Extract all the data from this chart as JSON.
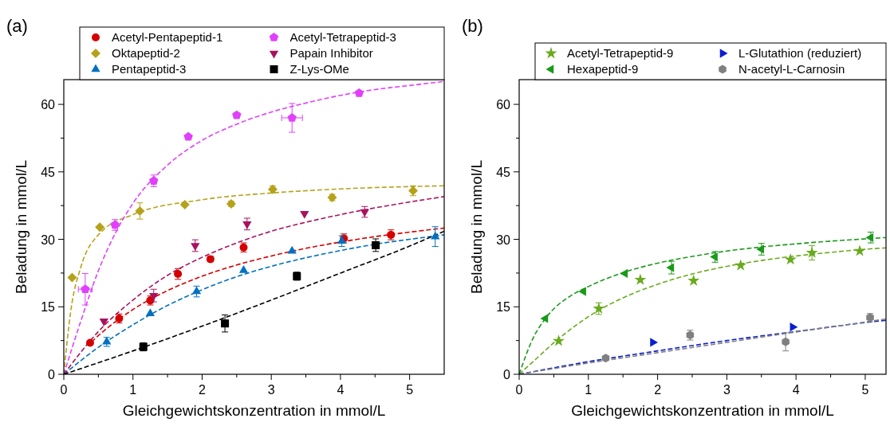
{
  "chart_data": [
    {
      "type": "scatter",
      "title": "(a)",
      "xlabel": "Gleichgewichtskonzentration in mmol/L",
      "ylabel": "Beladung in mmol/L",
      "xlim": [
        0,
        5.5
      ],
      "xticks": [
        0,
        {
          "value": 0.5,
          "label": null
        },
        1,
        {
          "value": 1.5,
          "label": null
        },
        2,
        {
          "value": 2.5,
          "label": null
        },
        3,
        {
          "value": 3.5,
          "label": null
        },
        4,
        {
          "value": 4.5,
          "label": null
        },
        5
      ],
      "ylim": [
        0,
        65.5
      ],
      "yticks": [
        0,
        {
          "value": 7.5,
          "label": null
        },
        15,
        {
          "value": 22.5,
          "label": null
        },
        30,
        {
          "value": 37.5,
          "label": null
        },
        45,
        {
          "value": 52.5,
          "label": null
        },
        60
      ],
      "legend": "top",
      "grid": false,
      "line_style": "dashed",
      "series": [
        {
          "type": "line",
          "color": "#d40000",
          "x": [
            0.4,
            0.5,
            1,
            1.5,
            2,
            2.5,
            3,
            3.5,
            4,
            4.5,
            5,
            5.5
          ],
          "values": [
            7.2,
            8.6,
            14.4,
            18.6,
            21.8,
            24.3,
            26.3,
            28.0,
            29.4,
            30.6,
            31.6,
            32.5
          ]
        },
        {
          "type": "line",
          "color": "#b5a21a",
          "x": [
            0,
            0.1,
            0.25,
            0.5,
            1,
            2,
            3,
            4,
            5.5
          ],
          "values": [
            0,
            14,
            24,
            31,
            35.5,
            38.8,
            40.3,
            41.2,
            41.9
          ]
        },
        {
          "type": "line",
          "color": "#0070c0",
          "x": [
            0,
            0.5,
            1,
            1.5,
            2,
            2.5,
            3,
            3.5,
            4,
            4.5,
            5,
            5.5
          ],
          "values": [
            0,
            6,
            11,
            15.3,
            18.8,
            21.7,
            24,
            25.9,
            27.5,
            28.9,
            30,
            31
          ]
        },
        {
          "type": "line",
          "color": "#e040fb",
          "x": [
            0,
            0.25,
            0.5,
            0.75,
            1,
            1.5,
            2,
            2.5,
            3,
            3.5,
            4,
            4.5,
            5,
            5.5
          ],
          "values": [
            0,
            12,
            23,
            31.5,
            38,
            46.5,
            52,
            55.6,
            58.3,
            60.3,
            62,
            63.3,
            64.2,
            65.1
          ]
        },
        {
          "type": "line",
          "color": "#a8125f",
          "x": [
            0,
            0.5,
            1,
            1.5,
            2,
            2.5,
            3,
            3.5,
            4,
            4.5,
            5,
            5.5
          ],
          "values": [
            0,
            9.5,
            16.5,
            22,
            26,
            29.2,
            31.8,
            33.8,
            35.5,
            37,
            38.3,
            39.5
          ]
        },
        {
          "type": "line",
          "color": "#000000",
          "x": [
            0,
            1,
            2,
            3,
            4,
            5,
            5.5
          ],
          "values": [
            0,
            5.2,
            10.7,
            16.5,
            22.5,
            28.5,
            31.8
          ]
        },
        {
          "name": "Acetyl-Pentapeptid-1",
          "color": "#d40000",
          "marker": "circle",
          "x": [
            0.38,
            0.8,
            1.25,
            1.65,
            2.12,
            2.6,
            4.05,
            4.73
          ],
          "values": [
            7,
            12.4,
            16.4,
            22.3,
            25.6,
            28.2,
            30.2,
            31
          ],
          "errors": [
            null,
            1,
            1,
            1.2,
            0.6,
            1,
            1,
            1.1
          ]
        },
        {
          "name": "Oktapeptid-2",
          "color": "#b5a21a",
          "marker": "diamond",
          "x": [
            0.12,
            0.52,
            1.1,
            1.75,
            2.42,
            3.02,
            3.88,
            5.05
          ],
          "values": [
            21.5,
            32.7,
            36.3,
            37.7,
            37.9,
            41.1,
            39.3,
            40.8
          ],
          "errors": [
            null,
            null,
            1.8,
            null,
            0.6,
            0.8,
            0.7,
            1.1
          ]
        },
        {
          "name": "Pentapeptid-3",
          "color": "#0070c0",
          "marker": "triangle",
          "x": [
            0.62,
            1.25,
            1.92,
            2.6,
            3.3,
            4.02,
            5.37
          ],
          "values": [
            7.2,
            13.5,
            18.4,
            23.1,
            27.4,
            29.6,
            30.6
          ],
          "errors": [
            1,
            null,
            1.2,
            null,
            null,
            1.2,
            2.2
          ]
        },
        {
          "name": "Acetyl-Tetrapeptid-3",
          "color": "#e040fb",
          "x": [
            0.31,
            0.74,
            1.3,
            1.8,
            2.5,
            3.3,
            4.27
          ],
          "values": [
            18.9,
            33.2,
            43,
            52.8,
            57.6,
            57,
            62.5
          ],
          "errors": [
            3.5,
            1.2,
            1.3,
            0.4,
            0.5,
            3.2,
            null
          ],
          "xerrors": [
            0.1,
            null,
            null,
            null,
            null,
            0.15,
            null
          ]
        },
        {
          "name": "Papain Inhibitor",
          "color": "#a8125f",
          "x": [
            0.58,
            1.3,
            1.9,
            2.65,
            3.48,
            4.35
          ],
          "values": [
            11.8,
            17.5,
            28.6,
            33.4,
            35.7,
            36.1
          ],
          "errors": [
            null,
            1.4,
            1.3,
            1.3,
            null,
            1.2
          ]
        },
        {
          "name": "Z-Lys-OMe",
          "color": "#000000",
          "marker": "square",
          "x": [
            1.15,
            2.33,
            3.37,
            4.51
          ],
          "values": [
            6.1,
            11.3,
            21.8,
            28.7
          ],
          "errors": [
            0.9,
            1.9,
            0.9,
            1.4
          ]
        }
      ]
    },
    {
      "type": "scatter",
      "title": "(b)",
      "xlabel": "Gleichgewichtskonzentration in mmol/L",
      "ylabel": "Beladung in mmol/L",
      "xlim": [
        0,
        5.3
      ],
      "xticks": [
        0,
        {
          "value": 0.5,
          "label": null
        },
        1,
        {
          "value": 1.5,
          "label": null
        },
        2,
        {
          "value": 2.5,
          "label": null
        },
        3,
        {
          "value": 3.5,
          "label": null
        },
        4,
        {
          "value": 4.5,
          "label": null
        },
        5
      ],
      "ylim": [
        0,
        65.5
      ],
      "yticks": [
        0,
        {
          "value": 7.5,
          "label": null
        },
        15,
        {
          "value": 22.5,
          "label": null
        },
        30,
        {
          "value": 37.5,
          "label": null
        },
        45,
        {
          "value": 52.5,
          "label": null
        },
        60
      ],
      "legend": "top",
      "grid": false,
      "line_style": "dashed",
      "series": [
        {
          "type": "line",
          "color": "#6aaa1e",
          "x": [
            0,
            0.25,
            0.5,
            1,
            1.5,
            2,
            2.5,
            3,
            3.5,
            4,
            4.5,
            5,
            5.3
          ],
          "values": [
            0,
            3.5,
            7,
            12.8,
            17,
            20,
            22.3,
            24,
            25.3,
            26.3,
            27.1,
            27.8,
            28.1
          ]
        },
        {
          "type": "line",
          "color": "#1a9a1a",
          "x": [
            0,
            0.2,
            0.4,
            0.75,
            1,
            1.5,
            2,
            2.5,
            3,
            3.5,
            4,
            4.5,
            5,
            5.3
          ],
          "values": [
            0,
            8,
            12.8,
            17.5,
            19.5,
            22.6,
            24.7,
            26.2,
            27.4,
            28.3,
            29,
            29.6,
            30.1,
            30.4
          ]
        },
        {
          "type": "line",
          "color": "#0a1ed0",
          "x": [
            0,
            1,
            2,
            3,
            4,
            5,
            5.3
          ],
          "values": [
            0,
            2.8,
            5.2,
            7.5,
            9.5,
            11.5,
            12
          ]
        },
        {
          "type": "line",
          "color": "#808080",
          "x": [
            0,
            1,
            2,
            3,
            4,
            5,
            5.3
          ],
          "values": [
            0,
            2.5,
            4.8,
            7.1,
            9.4,
            11.6,
            12.3
          ]
        },
        {
          "name": "Acetyl-Tetrapeptid-9",
          "color": "#6aaa1e",
          "marker": "star",
          "x": [
            0.57,
            1.15,
            1.75,
            2.52,
            3.2,
            3.92,
            4.23,
            4.92
          ],
          "values": [
            7.4,
            14.6,
            21,
            20.8,
            24.2,
            25.5,
            27,
            27.4
          ],
          "errors": [
            null,
            1.3,
            null,
            null,
            null,
            null,
            1.6,
            null
          ]
        },
        {
          "name": "Hexapeptid-9",
          "color": "#1a9a1a",
          "x": [
            0.38,
            0.93,
            1.53,
            2.2,
            2.83,
            3.5,
            5.08
          ],
          "values": [
            12.4,
            18.4,
            22.4,
            23.7,
            26.1,
            27.8,
            30.4
          ],
          "errors": [
            null,
            null,
            null,
            1.4,
            1.2,
            1.3,
            1.2
          ]
        },
        {
          "name": "L-Glutathion (reduziert)",
          "color": "#0a1ed0",
          "x": [
            1.93,
            3.95
          ],
          "values": [
            7.1,
            10.5
          ]
        },
        {
          "name": "N-acetyl-L-Carnosin",
          "color": "#808080",
          "x": [
            1.25,
            2.47,
            3.85,
            5.07
          ],
          "values": [
            3.6,
            8.7,
            7.2,
            12.6
          ],
          "errors": [
            null,
            1.1,
            2,
            0.9
          ]
        }
      ]
    }
  ]
}
